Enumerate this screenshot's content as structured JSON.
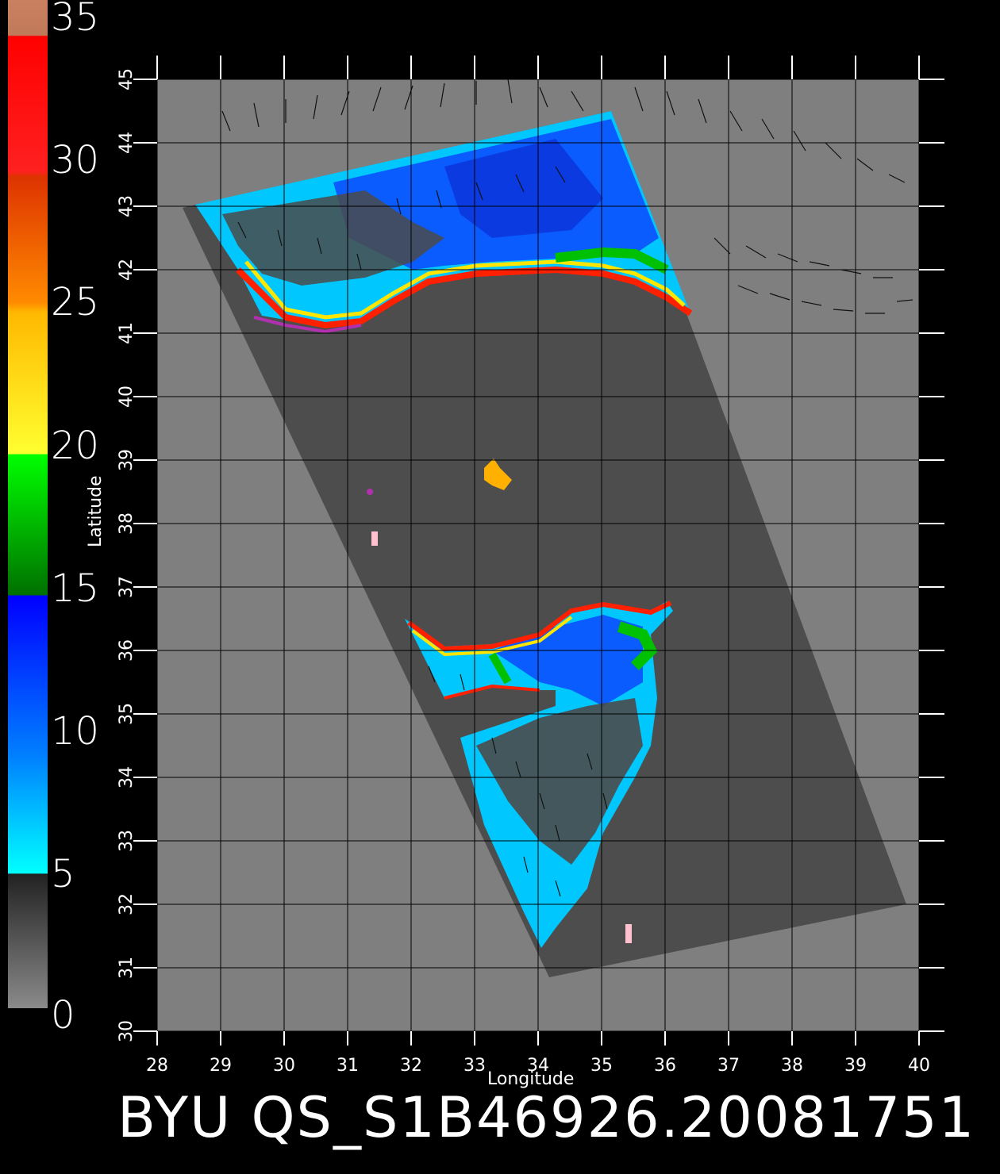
{
  "colorbar": {
    "labels": [
      "35",
      "30",
      "25",
      "20",
      "15",
      "10",
      "5",
      "0"
    ]
  },
  "axes": {
    "x_title": "Longitude",
    "y_title": "Latitude",
    "x_ticks": [
      "28",
      "29",
      "30",
      "31",
      "32",
      "33",
      "34",
      "35",
      "36",
      "37",
      "38",
      "39",
      "40"
    ],
    "y_ticks": [
      "45",
      "44",
      "43",
      "42",
      "41",
      "40",
      "39",
      "38",
      "37",
      "36",
      "35",
      "34",
      "33",
      "32",
      "31",
      "30"
    ]
  },
  "footer": {
    "text": "BYU QS_S1B46926.20081751"
  },
  "colors": {
    "background": "#000000",
    "land": "#7f7f7f",
    "swath_gray": "#4d4d4d",
    "wind_low": "#00e5ff",
    "wind_mid": "#0055ff",
    "wind_15_20": "#00c000",
    "wind_20_25": "#ffe600",
    "wind_25_30": "#ff6a00",
    "wind_30_35": "#ff1a00",
    "wind_35": "#c98060"
  }
}
